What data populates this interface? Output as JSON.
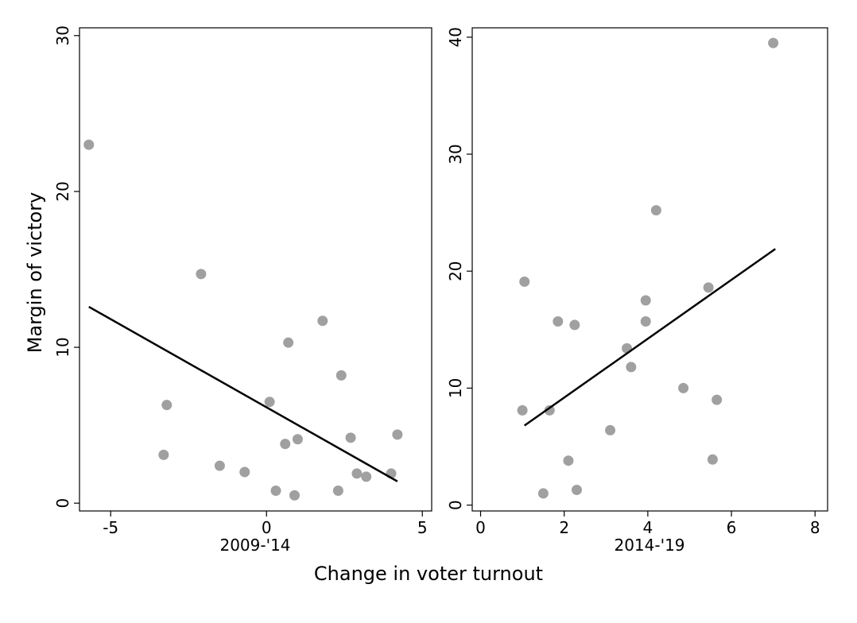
{
  "chart_data": [
    {
      "type": "scatter",
      "subtitle": "2009-'14",
      "ylabel": "Margin of victory",
      "xlim": [
        -6,
        5.3
      ],
      "ylim": [
        -0.5,
        30.5
      ],
      "xticks": [
        -5,
        0,
        5
      ],
      "yticks": [
        0,
        10,
        20,
        30
      ],
      "grid": false,
      "points": [
        {
          "x": -5.7,
          "y": 23.0
        },
        {
          "x": -3.2,
          "y": 6.3
        },
        {
          "x": -3.3,
          "y": 3.1
        },
        {
          "x": -2.1,
          "y": 14.7
        },
        {
          "x": -1.5,
          "y": 2.4
        },
        {
          "x": -0.7,
          "y": 2.0
        },
        {
          "x": 0.1,
          "y": 6.5
        },
        {
          "x": 0.3,
          "y": 0.8
        },
        {
          "x": 0.6,
          "y": 3.8
        },
        {
          "x": 0.7,
          "y": 10.3
        },
        {
          "x": 0.9,
          "y": 0.5
        },
        {
          "x": 1.0,
          "y": 4.1
        },
        {
          "x": 1.8,
          "y": 11.7
        },
        {
          "x": 2.3,
          "y": 0.8
        },
        {
          "x": 2.4,
          "y": 8.2
        },
        {
          "x": 2.7,
          "y": 4.2
        },
        {
          "x": 2.9,
          "y": 1.9
        },
        {
          "x": 3.2,
          "y": 1.7
        },
        {
          "x": 4.0,
          "y": 1.9
        },
        {
          "x": 4.2,
          "y": 4.4
        }
      ],
      "fit_line": [
        {
          "x": -5.7,
          "y": 12.6
        },
        {
          "x": 4.2,
          "y": 1.4
        }
      ]
    },
    {
      "type": "scatter",
      "subtitle": "2014-'19",
      "ylabel": "",
      "xlim": [
        -0.2,
        8.3
      ],
      "ylim": [
        -0.5,
        40.8
      ],
      "xticks": [
        0,
        2,
        4,
        6,
        8
      ],
      "yticks": [
        0,
        10,
        20,
        30,
        40
      ],
      "grid": false,
      "points": [
        {
          "x": 1.0,
          "y": 8.1
        },
        {
          "x": 1.05,
          "y": 19.1
        },
        {
          "x": 1.5,
          "y": 1.0
        },
        {
          "x": 1.65,
          "y": 8.1
        },
        {
          "x": 1.85,
          "y": 15.7
        },
        {
          "x": 2.1,
          "y": 3.8
        },
        {
          "x": 2.25,
          "y": 15.4
        },
        {
          "x": 2.3,
          "y": 1.3
        },
        {
          "x": 3.1,
          "y": 6.4
        },
        {
          "x": 3.5,
          "y": 13.4
        },
        {
          "x": 3.6,
          "y": 11.8
        },
        {
          "x": 3.95,
          "y": 17.5
        },
        {
          "x": 3.95,
          "y": 15.7
        },
        {
          "x": 4.2,
          "y": 25.2
        },
        {
          "x": 4.85,
          "y": 10.0
        },
        {
          "x": 5.45,
          "y": 18.6
        },
        {
          "x": 5.55,
          "y": 3.9
        },
        {
          "x": 5.65,
          "y": 9.0
        },
        {
          "x": 7.0,
          "y": 39.5
        }
      ],
      "fit_line": [
        {
          "x": 1.05,
          "y": 6.8
        },
        {
          "x": 7.05,
          "y": 21.9
        }
      ]
    }
  ],
  "figure": {
    "xlabel": "Change in voter turnout",
    "point_color": "#a0a0a0",
    "line_color": "#000000"
  }
}
